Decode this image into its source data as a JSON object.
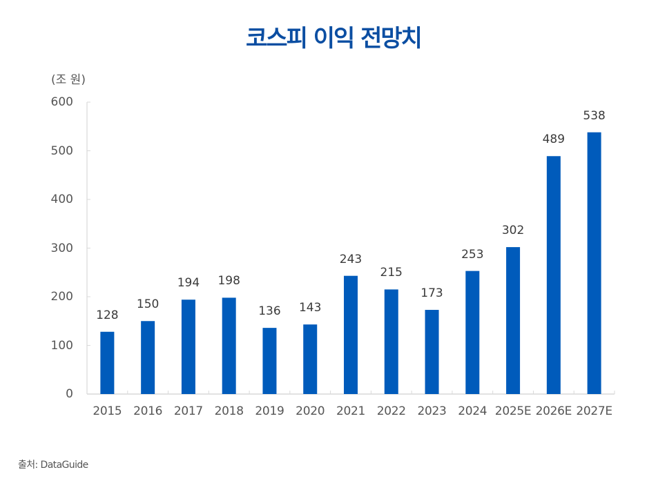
{
  "title": "코스피 이익 전망치",
  "unit_label": "(조 원)",
  "source": "출처: DataGuide",
  "colors": {
    "title": "#0b4ea2",
    "bar": "#005bbb",
    "axis": "#d9d9d9",
    "text": "#555555"
  },
  "chart_data": {
    "type": "bar",
    "title": "코스피 이익 전망치",
    "xlabel": "",
    "ylabel": "(조 원)",
    "categories": [
      "2015",
      "2016",
      "2017",
      "2018",
      "2019",
      "2020",
      "2021",
      "2022",
      "2023",
      "2024",
      "2025E",
      "2026E",
      "2027E"
    ],
    "values": [
      128,
      150,
      194,
      198,
      136,
      143,
      243,
      215,
      173,
      253,
      302,
      489,
      538
    ],
    "ylim": [
      0,
      600
    ],
    "yticks": [
      0,
      100,
      200,
      300,
      400,
      500,
      600
    ],
    "grid": false,
    "legend": null,
    "data_labels": true,
    "source": "출처: DataGuide"
  }
}
